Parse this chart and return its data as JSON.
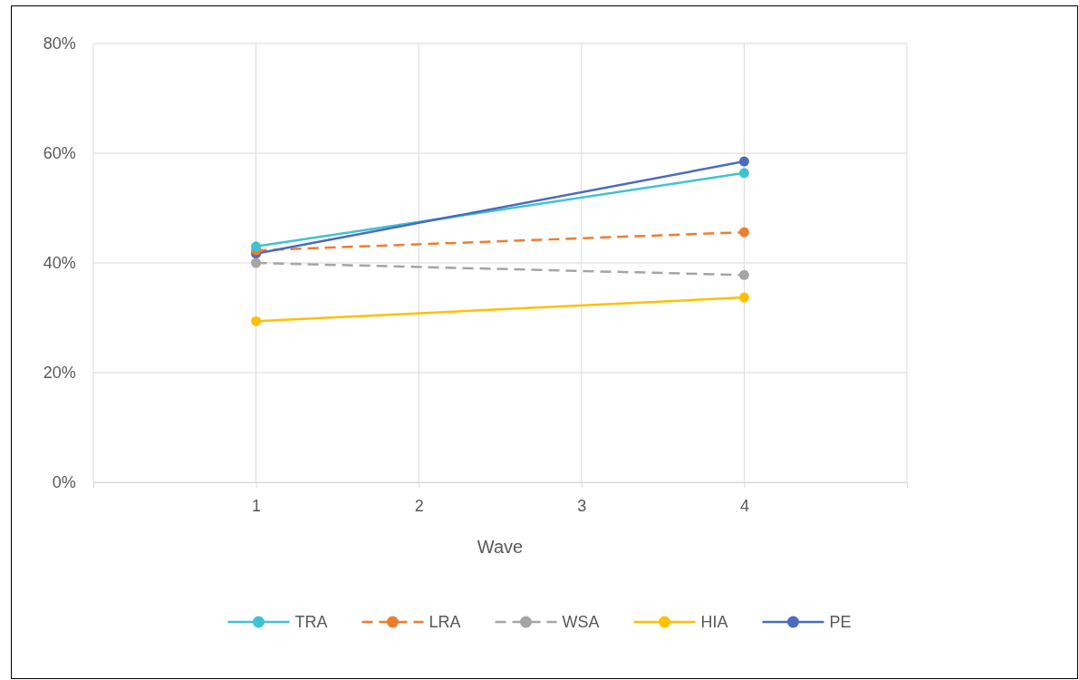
{
  "chart_data": {
    "type": "line",
    "xlabel": "Wave",
    "x": [
      1,
      4
    ],
    "series": [
      {
        "name": "TRA",
        "color": "#3fc3d0",
        "values": [
          43.0,
          56.4
        ]
      },
      {
        "name": "LRA",
        "color": "#ed7d31",
        "values": [
          42.3,
          45.6
        ],
        "line_style": "dashed"
      },
      {
        "name": "WSA",
        "color": "#a5a5a5",
        "values": [
          40.0,
          37.8
        ],
        "line_style": "dashed"
      },
      {
        "name": "HIA",
        "color": "#ffc000",
        "values": [
          29.4,
          33.7
        ]
      },
      {
        "name": "PE",
        "color": "#4a6bbf",
        "values": [
          41.7,
          58.5
        ]
      }
    ],
    "xlim": [
      0,
      5
    ],
    "xticks": [
      {
        "value": 0,
        "label": null
      },
      1,
      2,
      3,
      4,
      {
        "value": 5,
        "label": null
      }
    ],
    "ylim": [
      0,
      80
    ],
    "yticks": [
      {
        "value": 0,
        "label": "0%"
      },
      {
        "value": 20,
        "label": "20%"
      },
      {
        "value": 40,
        "label": "40%"
      },
      {
        "value": 60,
        "label": "60%"
      },
      {
        "value": 80,
        "label": "80%"
      }
    ],
    "grid": true,
    "legend": "bottom",
    "marker": "circle",
    "line_style": "solid"
  }
}
